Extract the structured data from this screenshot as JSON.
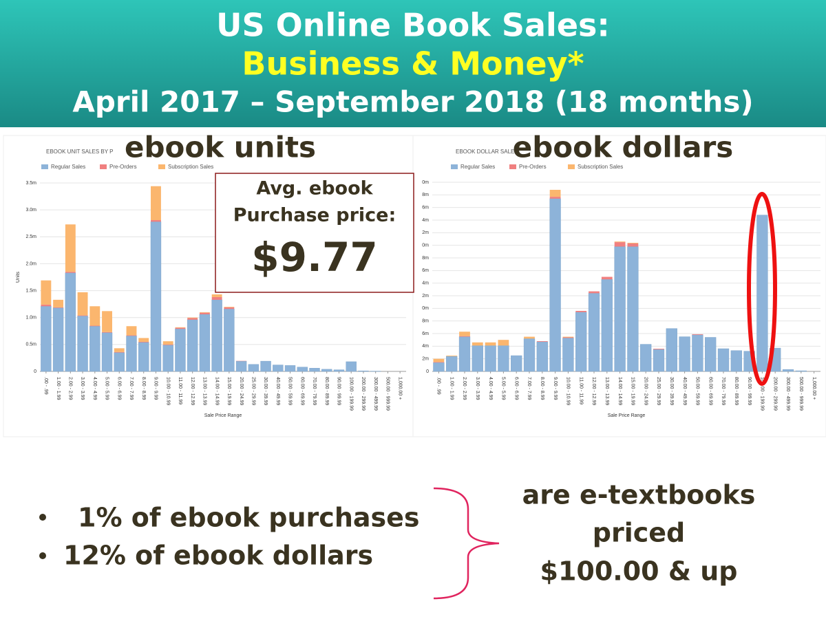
{
  "header": {
    "line1": "US Online Book Sales:",
    "line2": "Business & Money*",
    "line3": "April 2017 – September 2018 (18 months)"
  },
  "chart_data": [
    {
      "type": "bar",
      "stacked": true,
      "panel_title": "EBOOK UNIT SALES BY P",
      "title": "ebook units",
      "ylabel": "Units",
      "xlabel": "Sale Price Range",
      "categories": [
        ".00 - .99",
        "1.00 - 1.99",
        "2.00 - 2.99",
        "3.00 - 3.99",
        "4.00 - 4.99",
        "5.00 - 5.99",
        "6.00 - 6.99",
        "7.00 - 7.99",
        "8.00 - 8.99",
        "9.00 - 9.99",
        "10.00 - 10.99",
        "11.00 - 11.99",
        "12.00 - 12.99",
        "13.00 - 13.99",
        "14.00 - 14.99",
        "15.00 - 19.99",
        "20.00 - 24.99",
        "25.00 - 29.99",
        "30.00 - 39.99",
        "40.00 - 49.99",
        "50.00 - 59.99",
        "60.00 - 69.99",
        "70.00 - 79.99",
        "80.00 - 89.99",
        "90.00 - 99.99",
        "100.00 - 199.99",
        "200.00 - 299.99",
        "300.00 - 499.99",
        "500.00 - 999.99",
        "1,000.00 +"
      ],
      "series": [
        {
          "name": "Regular Sales",
          "color": "#8db3d9",
          "values": [
            1.21,
            1.18,
            1.83,
            1.03,
            0.84,
            0.72,
            0.35,
            0.66,
            0.54,
            2.78,
            0.49,
            0.79,
            0.96,
            1.06,
            1.33,
            1.16,
            0.19,
            0.13,
            0.19,
            0.12,
            0.11,
            0.08,
            0.06,
            0.04,
            0.03,
            0.18,
            0.01,
            0.005,
            0,
            0
          ]
        },
        {
          "name": "Pre-Orders",
          "color": "#f08080",
          "values": [
            0.03,
            0.01,
            0.02,
            0.01,
            0.01,
            0.01,
            0.01,
            0.01,
            0.01,
            0.03,
            0.01,
            0.02,
            0.03,
            0.03,
            0.05,
            0.03,
            0.005,
            0,
            0,
            0,
            0,
            0,
            0,
            0,
            0,
            0,
            0,
            0,
            0,
            0
          ]
        },
        {
          "name": "Subscription Sales",
          "color": "#fbb66e",
          "values": [
            0.45,
            0.14,
            0.88,
            0.43,
            0.36,
            0.39,
            0.07,
            0.17,
            0.07,
            0.63,
            0.06,
            0.01,
            0.01,
            0.01,
            0.05,
            0.01,
            0,
            0,
            0,
            0,
            0,
            0,
            0,
            0,
            0,
            0,
            0,
            0,
            0,
            0
          ]
        }
      ],
      "ylim": [
        0,
        3.5
      ],
      "yticks": [
        0,
        {
          "value": 0.5,
          "label": "0.5m"
        },
        {
          "value": 1.0,
          "label": "1.0m"
        },
        {
          "value": 1.5,
          "label": "1.5m"
        },
        {
          "value": 2.0,
          "label": "2.0m"
        },
        {
          "value": 2.5,
          "label": "2.5m"
        },
        {
          "value": 3.0,
          "label": "3.0m"
        },
        {
          "value": 3.5,
          "label": "3.5m"
        }
      ],
      "grid": true
    },
    {
      "type": "bar",
      "stacked": true,
      "panel_title": "EBOOK DOLLAR SALE",
      "title": "ebook dollars",
      "xlabel": "Sale Price Range",
      "categories": [
        ".00 - .99",
        "1.00 - 1.99",
        "2.00 - 2.99",
        "3.00 - 3.99",
        "4.00 - 4.99",
        "5.00 - 5.99",
        "6.00 - 6.99",
        "7.00 - 7.99",
        "8.00 - 8.99",
        "9.00 - 9.99",
        "10.00 - 10.99",
        "11.00 - 11.99",
        "12.00 - 12.99",
        "13.00 - 13.99",
        "14.00 - 14.99",
        "15.00 - 19.99",
        "20.00 - 24.99",
        "25.00 - 29.99",
        "30.00 - 39.99",
        "40.00 - 49.99",
        "50.00 - 59.99",
        "60.00 - 69.99",
        "70.00 - 79.99",
        "80.00 - 89.99",
        "90.00 - 99.99",
        "100.00 - 199.99",
        "200.00 - 299.99",
        "300.00 - 499.99",
        "500.00 - 999.99",
        "1,000.00 +"
      ],
      "series": [
        {
          "name": "Regular Sales",
          "color": "#8db3d9",
          "values": [
            0.14,
            0.24,
            0.55,
            0.41,
            0.41,
            0.41,
            0.25,
            0.52,
            0.47,
            2.74,
            0.53,
            0.94,
            1.24,
            1.46,
            1.98,
            1.98,
            0.43,
            0.35,
            0.68,
            0.55,
            0.58,
            0.54,
            0.36,
            0.33,
            0.32,
            2.48,
            0.37,
            0.03,
            0.01,
            0
          ]
        },
        {
          "name": "Pre-Orders",
          "color": "#f08080",
          "values": [
            0.01,
            0,
            0.01,
            0,
            0,
            0,
            0,
            0,
            0.01,
            0.03,
            0.01,
            0.02,
            0.03,
            0.04,
            0.07,
            0.05,
            0,
            0.01,
            0,
            0,
            0.01,
            0,
            0,
            0,
            0,
            0,
            0,
            0,
            0,
            0
          ]
        },
        {
          "name": "Subscription Sales",
          "color": "#fbb66e",
          "values": [
            0.05,
            0.01,
            0.07,
            0.05,
            0.05,
            0.09,
            0,
            0.03,
            0,
            0.11,
            0.01,
            0,
            0,
            0,
            0.01,
            0.01,
            0,
            0,
            0,
            0,
            0,
            0,
            0,
            0,
            0,
            0,
            0,
            0,
            0,
            0
          ]
        }
      ],
      "ylim": [
        0,
        3.0
      ],
      "yticks": [
        0,
        {
          "value": 0.2,
          "label": "2m"
        },
        {
          "value": 0.4,
          "label": "4m"
        },
        {
          "value": 0.6,
          "label": "6m"
        },
        {
          "value": 0.8,
          "label": "8m"
        },
        {
          "value": 1.0,
          "label": "0m"
        },
        {
          "value": 1.2,
          "label": "2m"
        },
        {
          "value": 1.4,
          "label": "4m"
        },
        {
          "value": 1.6,
          "label": "6m"
        },
        {
          "value": 1.8,
          "label": "8m"
        },
        {
          "value": 2.0,
          "label": "0m"
        },
        {
          "value": 2.2,
          "label": "2m"
        },
        {
          "value": 2.4,
          "label": "4m"
        },
        {
          "value": 2.6,
          "label": "6m"
        },
        {
          "value": 2.8,
          "label": "8m"
        },
        {
          "value": 3.0,
          "label": "0m"
        }
      ],
      "grid": true
    }
  ],
  "callout": {
    "line1": "Avg. ebook",
    "line2": "Purchase price:",
    "value": "$9.77"
  },
  "bullets": [
    "1% of ebook purchases",
    "12% of ebook dollars"
  ],
  "note": [
    "are e-textbooks",
    "priced",
    "$100.00 & up"
  ]
}
